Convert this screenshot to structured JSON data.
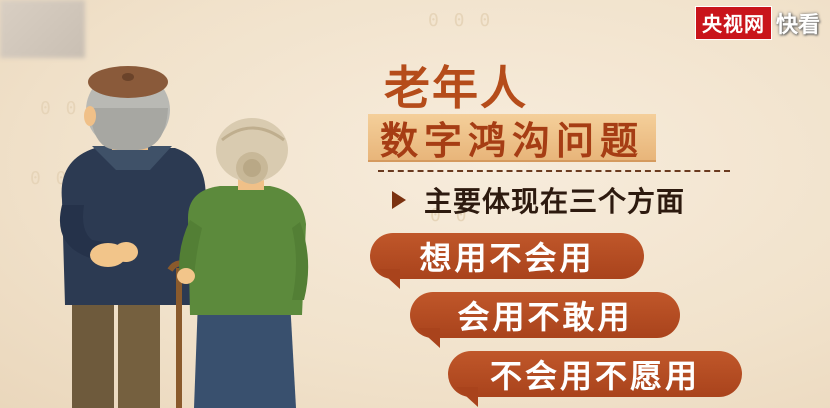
{
  "watermark": {
    "logo_main": "央视网",
    "logo_sub": "快看"
  },
  "title": {
    "line1": "老年人",
    "line2": "数字鸿沟问题"
  },
  "subtitle": "主要体现在三个方面",
  "points": [
    "想用不会用",
    "会用不敢用",
    "不会用不愿用"
  ],
  "colors": {
    "background": "#f3e6d2",
    "title_text": "#b54c1a",
    "title_band": "#edc087",
    "bubble": "#b34a20",
    "logo_red": "#c9141b"
  },
  "icons": {
    "bullet": "play-triangle-icon"
  }
}
